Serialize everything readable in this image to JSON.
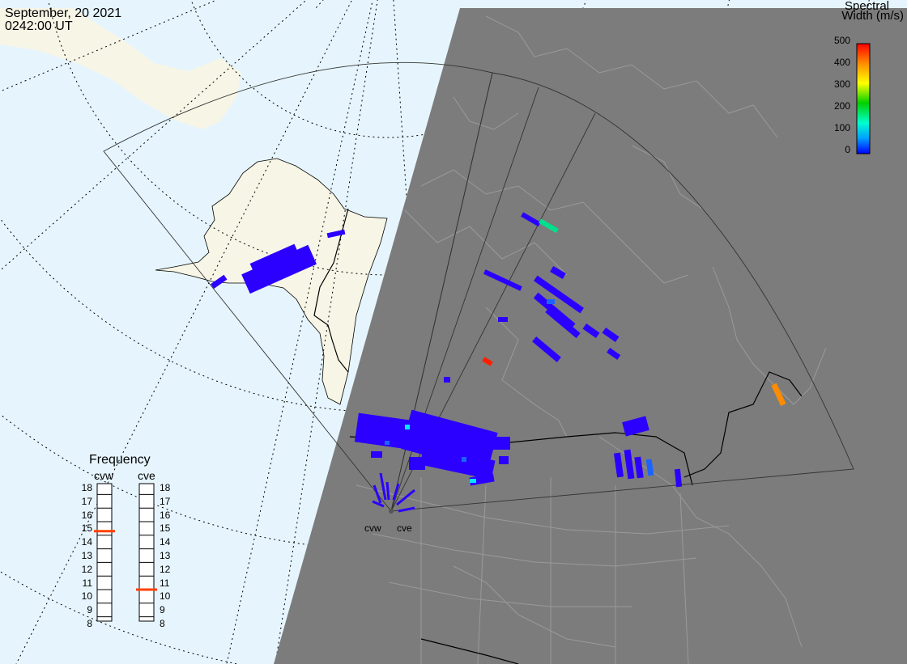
{
  "header": {
    "date": "September, 20 2021",
    "time": "0242:00 UT"
  },
  "colorbar": {
    "title_line1": "Spectral",
    "title_line2": "Width (m/s)",
    "ticks": [
      "500",
      "400",
      "300",
      "200",
      "100",
      "0"
    ],
    "min": 0,
    "max": 500,
    "colors": [
      "#ff0000",
      "#ff8c00",
      "#ffff00",
      "#00d000",
      "#00ffd0",
      "#00a0ff",
      "#0000ff"
    ]
  },
  "frequency_panel": {
    "title": "Frequency",
    "columns": [
      {
        "label": "cvw",
        "value_mhz": 14.8,
        "marker_color": "#ff4000"
      },
      {
        "label": "cve",
        "value_mhz": 10.5,
        "marker_color": "#ff4000"
      }
    ],
    "scale": [
      "18",
      "17",
      "16",
      "15",
      "14",
      "13",
      "12",
      "11",
      "10",
      "9",
      "8"
    ]
  },
  "radar_sites": [
    {
      "label": "cvw"
    },
    {
      "label": "cve"
    }
  ],
  "colors": {
    "ocean_day": "#e6f5fd",
    "land_day": "#f7f5e6",
    "night": "#7c7c7c",
    "border": "#000000",
    "low_width": "#2b00ff",
    "high_width_red": "#ff1e00",
    "orange": "#ff8c00",
    "green": "#00e08c"
  }
}
